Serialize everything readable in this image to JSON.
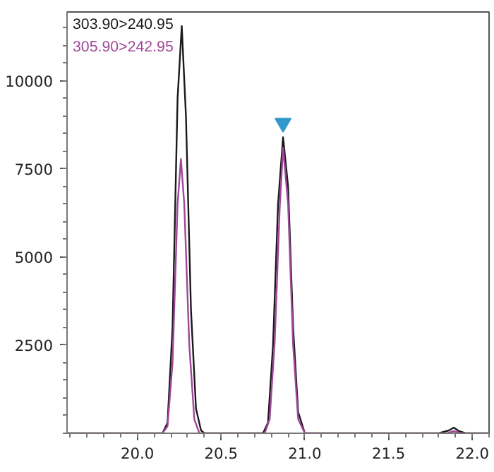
{
  "chart_data": {
    "type": "line",
    "xlim": [
      19.58,
      22.1
    ],
    "ylim": [
      0,
      11950
    ],
    "xticks": [
      {
        "value": 20,
        "label": "20.0"
      },
      20.5,
      {
        "value": 21,
        "label": "21.0"
      },
      21.5,
      {
        "value": 22,
        "label": "22.0"
      }
    ],
    "yticks": [
      2500,
      5000,
      7500,
      10000
    ],
    "grid": false,
    "line_style": "solid",
    "marker": "none",
    "series": [
      {
        "name": "303.90>240.95",
        "color": "#1a1a1a",
        "x": [
          19.58,
          20.0,
          20.15,
          20.18,
          20.21,
          20.24,
          20.265,
          20.29,
          20.32,
          20.35,
          20.38,
          20.4,
          20.75,
          20.78,
          20.81,
          20.84,
          20.87,
          20.9,
          20.93,
          20.96,
          21.0,
          21.8,
          21.86,
          21.89,
          21.92,
          21.96,
          22.1
        ],
        "values": [
          0,
          0,
          0,
          300,
          3000,
          9500,
          11550,
          9000,
          3500,
          700,
          80,
          0,
          0,
          300,
          2500,
          6500,
          8400,
          7000,
          3000,
          600,
          0,
          0,
          80,
          160,
          60,
          0,
          0
        ]
      },
      {
        "name": "305.90>242.95",
        "color": "#a0479a",
        "x": [
          19.58,
          20.15,
          20.18,
          20.21,
          20.24,
          20.26,
          20.28,
          20.31,
          20.34,
          20.37,
          20.76,
          20.79,
          20.82,
          20.85,
          20.87,
          20.9,
          20.93,
          20.96,
          21.0,
          21.85,
          21.89,
          21.93,
          22.1
        ],
        "values": [
          0,
          0,
          200,
          2000,
          6500,
          7780,
          6500,
          2500,
          400,
          0,
          0,
          400,
          2600,
          6400,
          8100,
          6500,
          2500,
          400,
          0,
          0,
          60,
          0,
          0
        ]
      },
      {
        "type": "scatter",
        "marker": "triangle",
        "color": "#3399cc",
        "x": [
          20.87
        ],
        "values": [
          8800
        ]
      }
    ]
  }
}
